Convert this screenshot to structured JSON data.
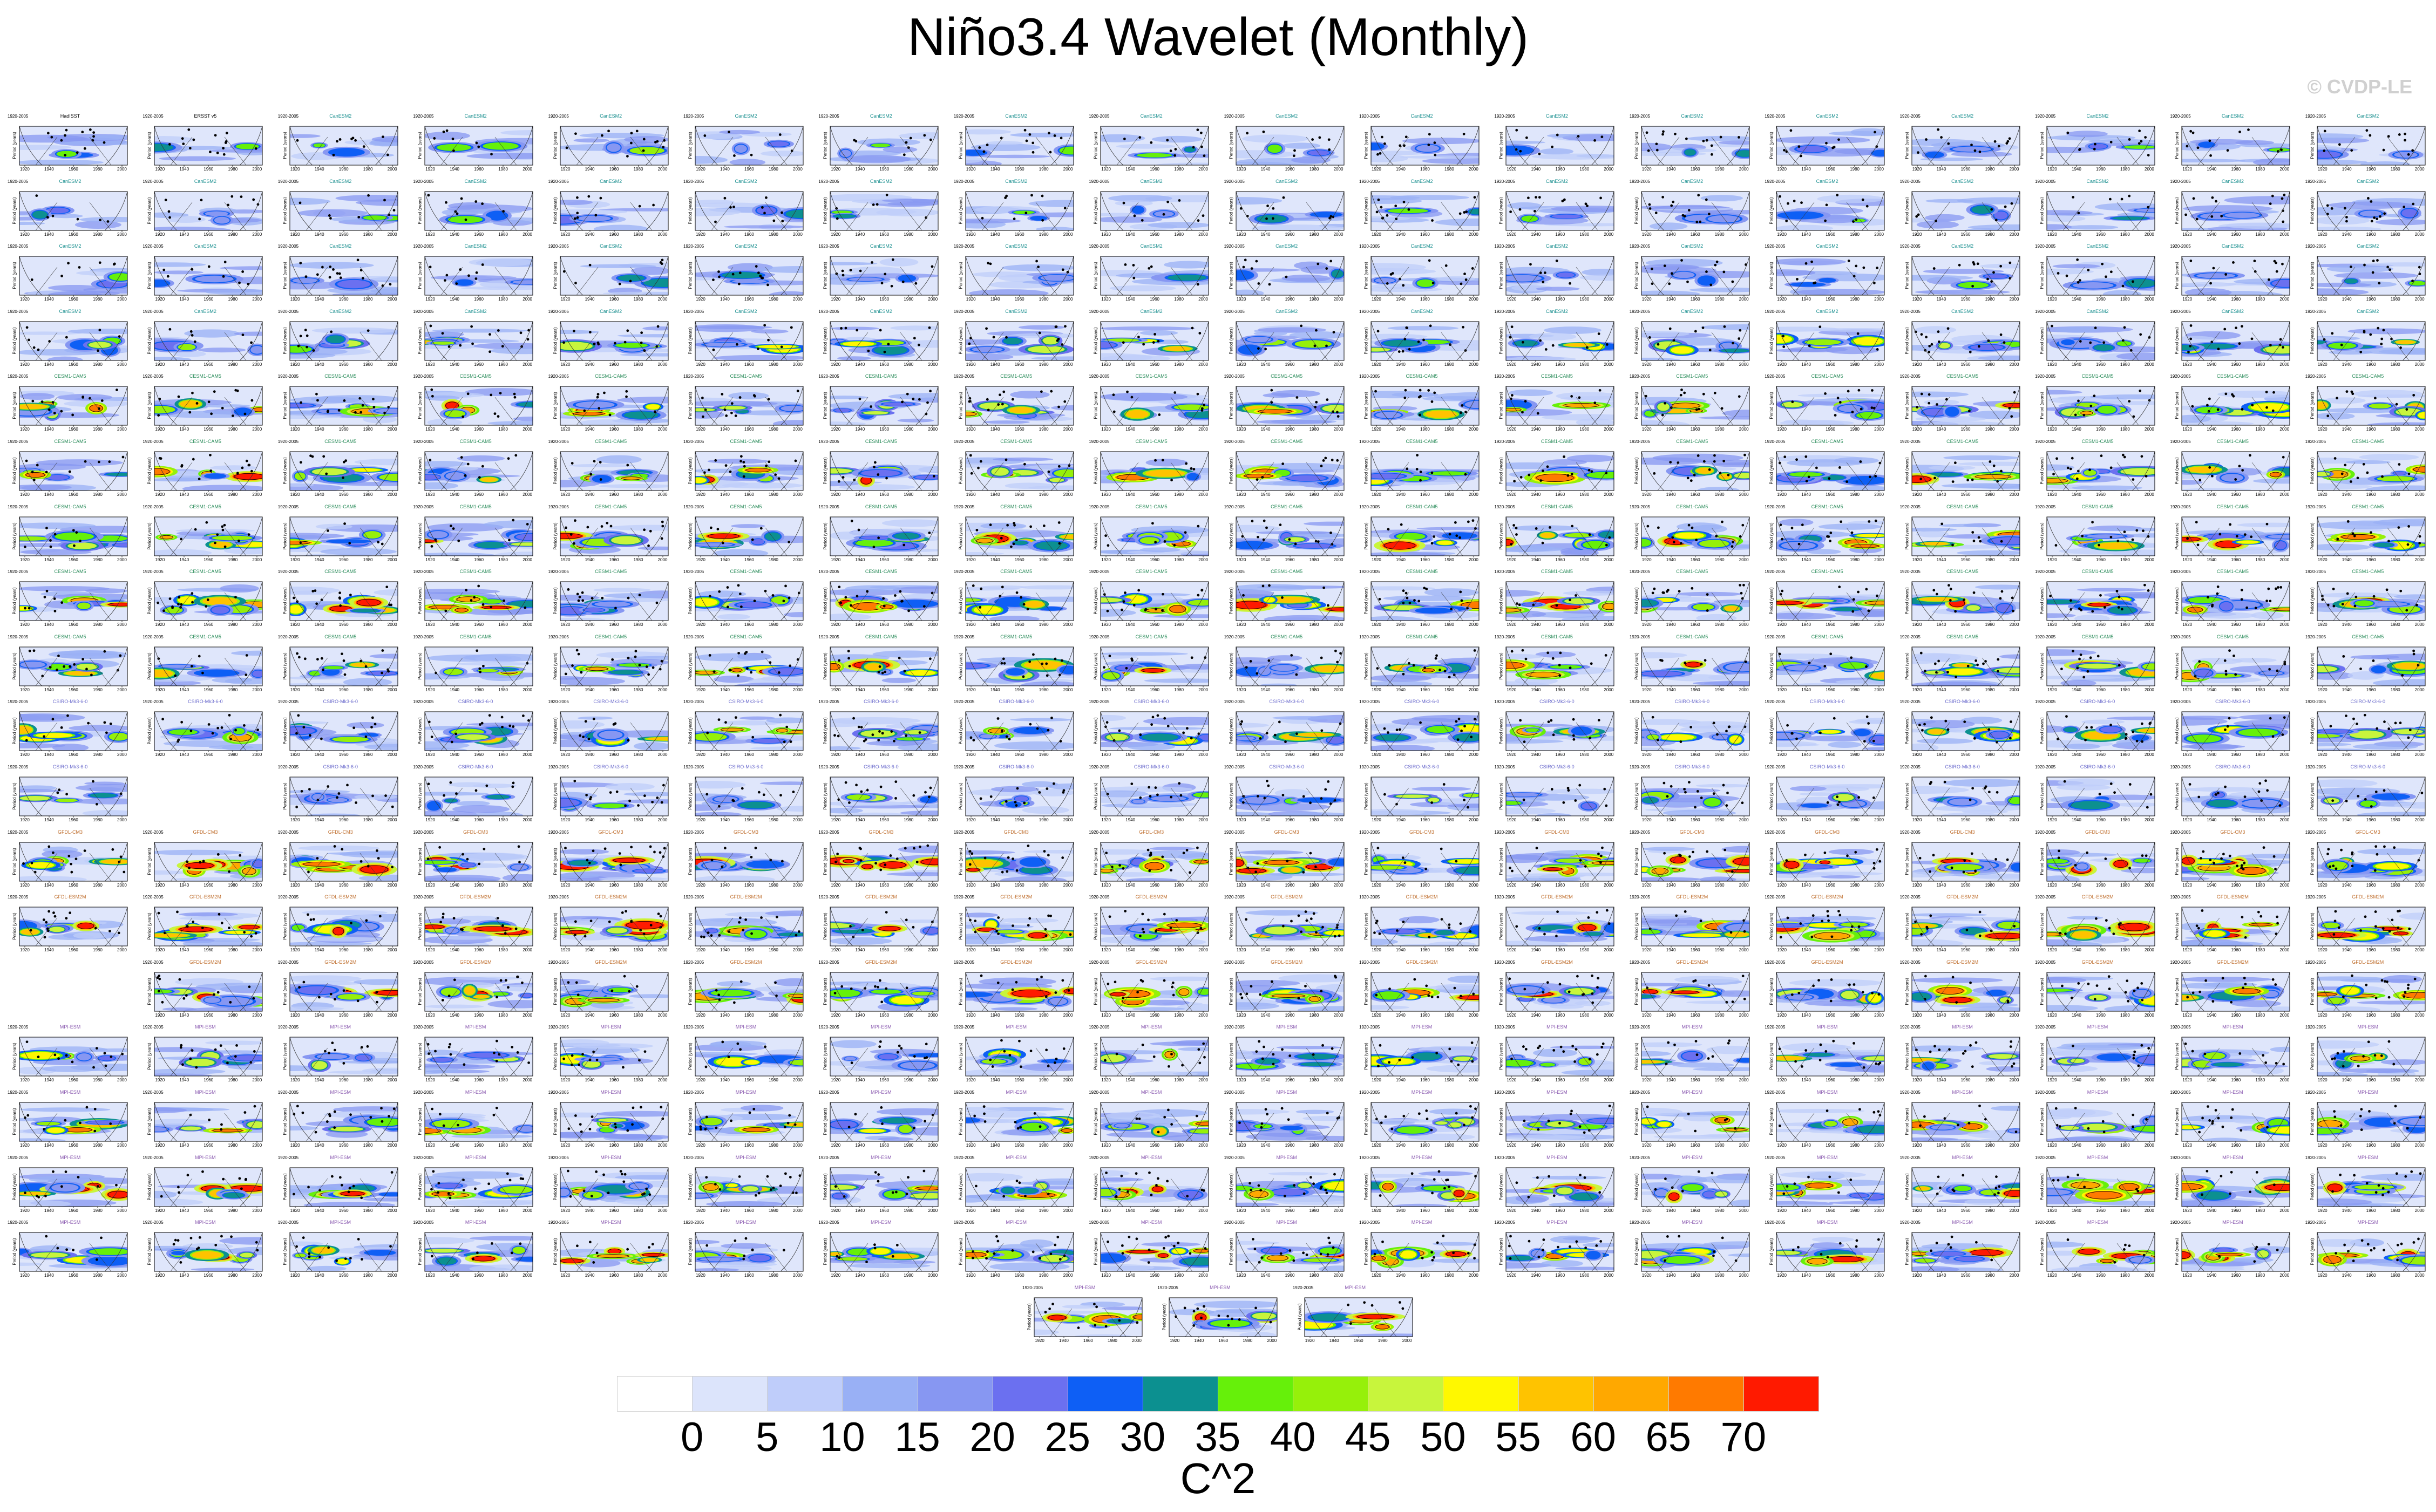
{
  "page": {
    "title": "Niño3.4 Wavelet (Monthly)",
    "credit": "© CVDP-LE"
  },
  "panel": {
    "obs_title": "HadISST",
    "obs2_title": "ERSST v5",
    "period": "1920-2005",
    "ylabel": "Period (years)",
    "xticks": [
      "1920",
      "1940",
      "1960",
      "1980",
      "2000"
    ]
  },
  "rows": [
    {
      "model": "CanESM2",
      "n": 18,
      "titlecolor": "#1a8f8f"
    },
    {
      "model": "CanESM2",
      "n": 18,
      "titlecolor": "#1a8f8f"
    },
    {
      "model": "CanESM2",
      "n": 18,
      "titlecolor": "#1a8f8f"
    },
    {
      "model": "CanESM2",
      "n": 18,
      "titlecolor": "#1a8f8f"
    },
    {
      "model": "CESM1-CAM5",
      "n": 18,
      "titlecolor": "#2a8c5a"
    },
    {
      "model": "CESM1-CAM5",
      "n": 18,
      "titlecolor": "#2a8c5a"
    },
    {
      "model": "CESM1-CAM5",
      "n": 18,
      "titlecolor": "#2a8c5a"
    },
    {
      "model": "CESM1-CAM5",
      "n": 18,
      "titlecolor": "#2a8c5a"
    },
    {
      "model": "CESM1-CAM5",
      "n": 18,
      "titlecolor": "#2a8c5a"
    },
    {
      "model": "CSIRO-Mk3-6-0",
      "n": 18,
      "titlecolor": "#6a6acc"
    },
    {
      "model": "CSIRO-Mk3-6-0",
      "n": 18,
      "titlecolor": "#6a6acc",
      "skip": [
        1
      ]
    },
    {
      "model": "GFDL-CM3",
      "n": 18,
      "titlecolor": "#c07030"
    },
    {
      "model": "GFDL-ESM2M",
      "n": 18,
      "titlecolor": "#c07030"
    },
    {
      "model": "GFDL-ESM2M",
      "n": 18,
      "titlecolor": "#c07030",
      "skip": [
        0
      ]
    },
    {
      "model": "MPI-ESM",
      "n": 18,
      "titlecolor": "#8a5ab0"
    },
    {
      "model": "MPI-ESM",
      "n": 18,
      "titlecolor": "#8a5ab0"
    },
    {
      "model": "MPI-ESM",
      "n": 18,
      "titlecolor": "#8a5ab0"
    },
    {
      "model": "MPI-ESM",
      "n": 18,
      "titlecolor": "#8a5ab0"
    },
    {
      "model": "MPI-ESM",
      "n": 3,
      "titlecolor": "#8a5ab0",
      "centered": true
    }
  ],
  "colorbar": {
    "colors": [
      "#ffffff",
      "#dce4fb",
      "#bfcdfa",
      "#99b0f5",
      "#8797f2",
      "#6b70f0",
      "#0e5ff5",
      "#0c9090",
      "#66f00a",
      "#96f00a",
      "#c8f53c",
      "#fff800",
      "#ffc300",
      "#ffa800",
      "#ff7a00",
      "#ff1a00"
    ],
    "ticks": [
      "0",
      "5",
      "10",
      "15",
      "20",
      "25",
      "30",
      "35",
      "40",
      "45",
      "50",
      "55",
      "60",
      "65",
      "70"
    ],
    "label": "C^2"
  }
}
